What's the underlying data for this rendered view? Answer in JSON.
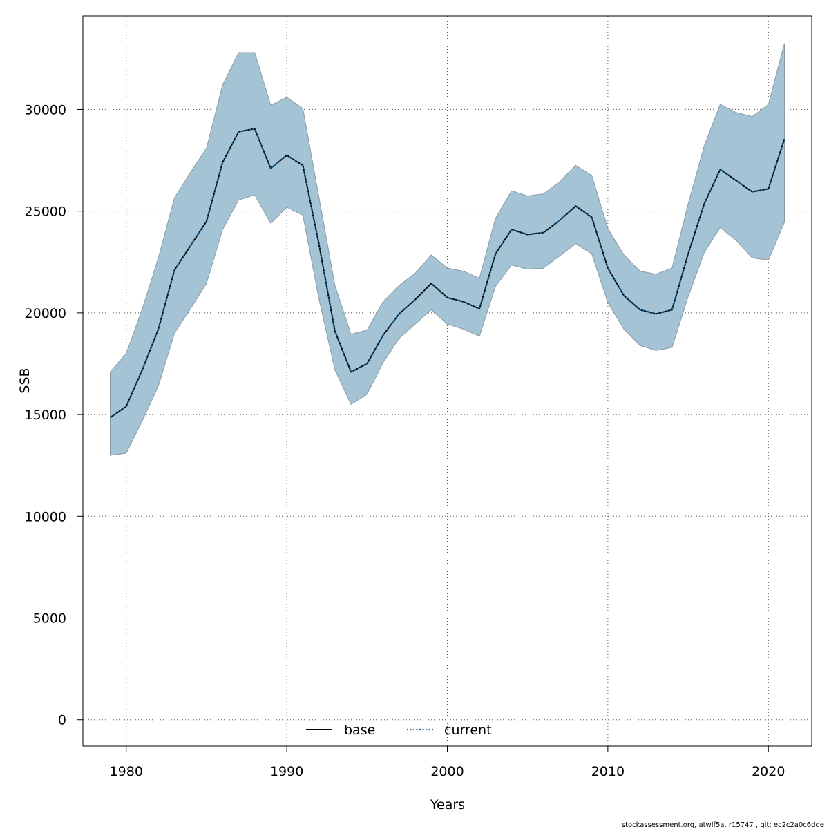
{
  "chart_data": {
    "type": "line",
    "xlabel": "Years",
    "ylabel": "SSB",
    "xlim": [
      1977.3,
      2022.7
    ],
    "ylim": [
      -1300,
      34600
    ],
    "x_ticks": [
      1980,
      1990,
      2000,
      2010,
      2020
    ],
    "y_ticks": [
      0,
      5000,
      10000,
      15000,
      20000,
      25000,
      30000
    ],
    "grid": true,
    "legend_position": "bottom",
    "legend": [
      {
        "name": "base",
        "style": "solid",
        "color": "#000000"
      },
      {
        "name": "current",
        "style": "dotted",
        "color": "#1a5f86"
      }
    ],
    "x": [
      1979,
      1980,
      1981,
      1982,
      1983,
      1984,
      1985,
      1986,
      1987,
      1988,
      1989,
      1990,
      1991,
      1992,
      1993,
      1994,
      1995,
      1996,
      1997,
      1998,
      1999,
      2000,
      2001,
      2002,
      2003,
      2004,
      2005,
      2006,
      2007,
      2008,
      2009,
      2010,
      2011,
      2012,
      2013,
      2014,
      2015,
      2016,
      2017,
      2018,
      2019,
      2020,
      2021
    ],
    "series": [
      {
        "name": "base",
        "values": [
          14850,
          15400,
          17200,
          19200,
          22100,
          23300,
          24500,
          27400,
          28900,
          29050,
          27100,
          27750,
          27250,
          23400,
          19100,
          17100,
          17500,
          18900,
          19950,
          20650,
          21450,
          20750,
          20550,
          20200,
          22900,
          24100,
          23850,
          23950,
          24550,
          25250,
          24700,
          22200,
          20850,
          20150,
          19950,
          20150,
          22900,
          25350,
          27050,
          26500,
          25950,
          26100,
          28550
        ]
      },
      {
        "name": "current",
        "values": [
          14850,
          15400,
          17200,
          19200,
          22100,
          23300,
          24500,
          27400,
          28900,
          29050,
          27100,
          27750,
          27250,
          23400,
          19100,
          17100,
          17500,
          18900,
          19950,
          20650,
          21450,
          20750,
          20550,
          20200,
          22900,
          24100,
          23850,
          23950,
          24550,
          25250,
          24700,
          22200,
          20850,
          20150,
          19950,
          20150,
          22900,
          25350,
          27050,
          26500,
          25950,
          26100,
          28550
        ],
        "upper": [
          17100,
          18000,
          20200,
          22700,
          25650,
          26900,
          28100,
          31200,
          32800,
          32800,
          30200,
          30600,
          30050,
          25700,
          21350,
          18950,
          19150,
          20550,
          21350,
          21950,
          22850,
          22200,
          22050,
          21700,
          24650,
          26000,
          25750,
          25850,
          26450,
          27250,
          26750,
          24150,
          22850,
          22050,
          21900,
          22200,
          25350,
          28200,
          30250,
          29850,
          29650,
          30250,
          33250
        ],
        "lower": [
          13000,
          13100,
          14700,
          16400,
          19000,
          20200,
          21450,
          24100,
          25550,
          25800,
          24400,
          25200,
          24800,
          20700,
          17200,
          15500,
          16000,
          17550,
          18750,
          19450,
          20150,
          19450,
          19200,
          18850,
          21300,
          22350,
          22150,
          22200,
          22800,
          23400,
          22900,
          20500,
          19200,
          18400,
          18150,
          18300,
          20800,
          22950,
          24200,
          23550,
          22700,
          22600,
          24450
        ]
      }
    ]
  },
  "footer_text": "stockassessment.org, atwlf5a, r15747 , git: ec2c2a0c6dde"
}
